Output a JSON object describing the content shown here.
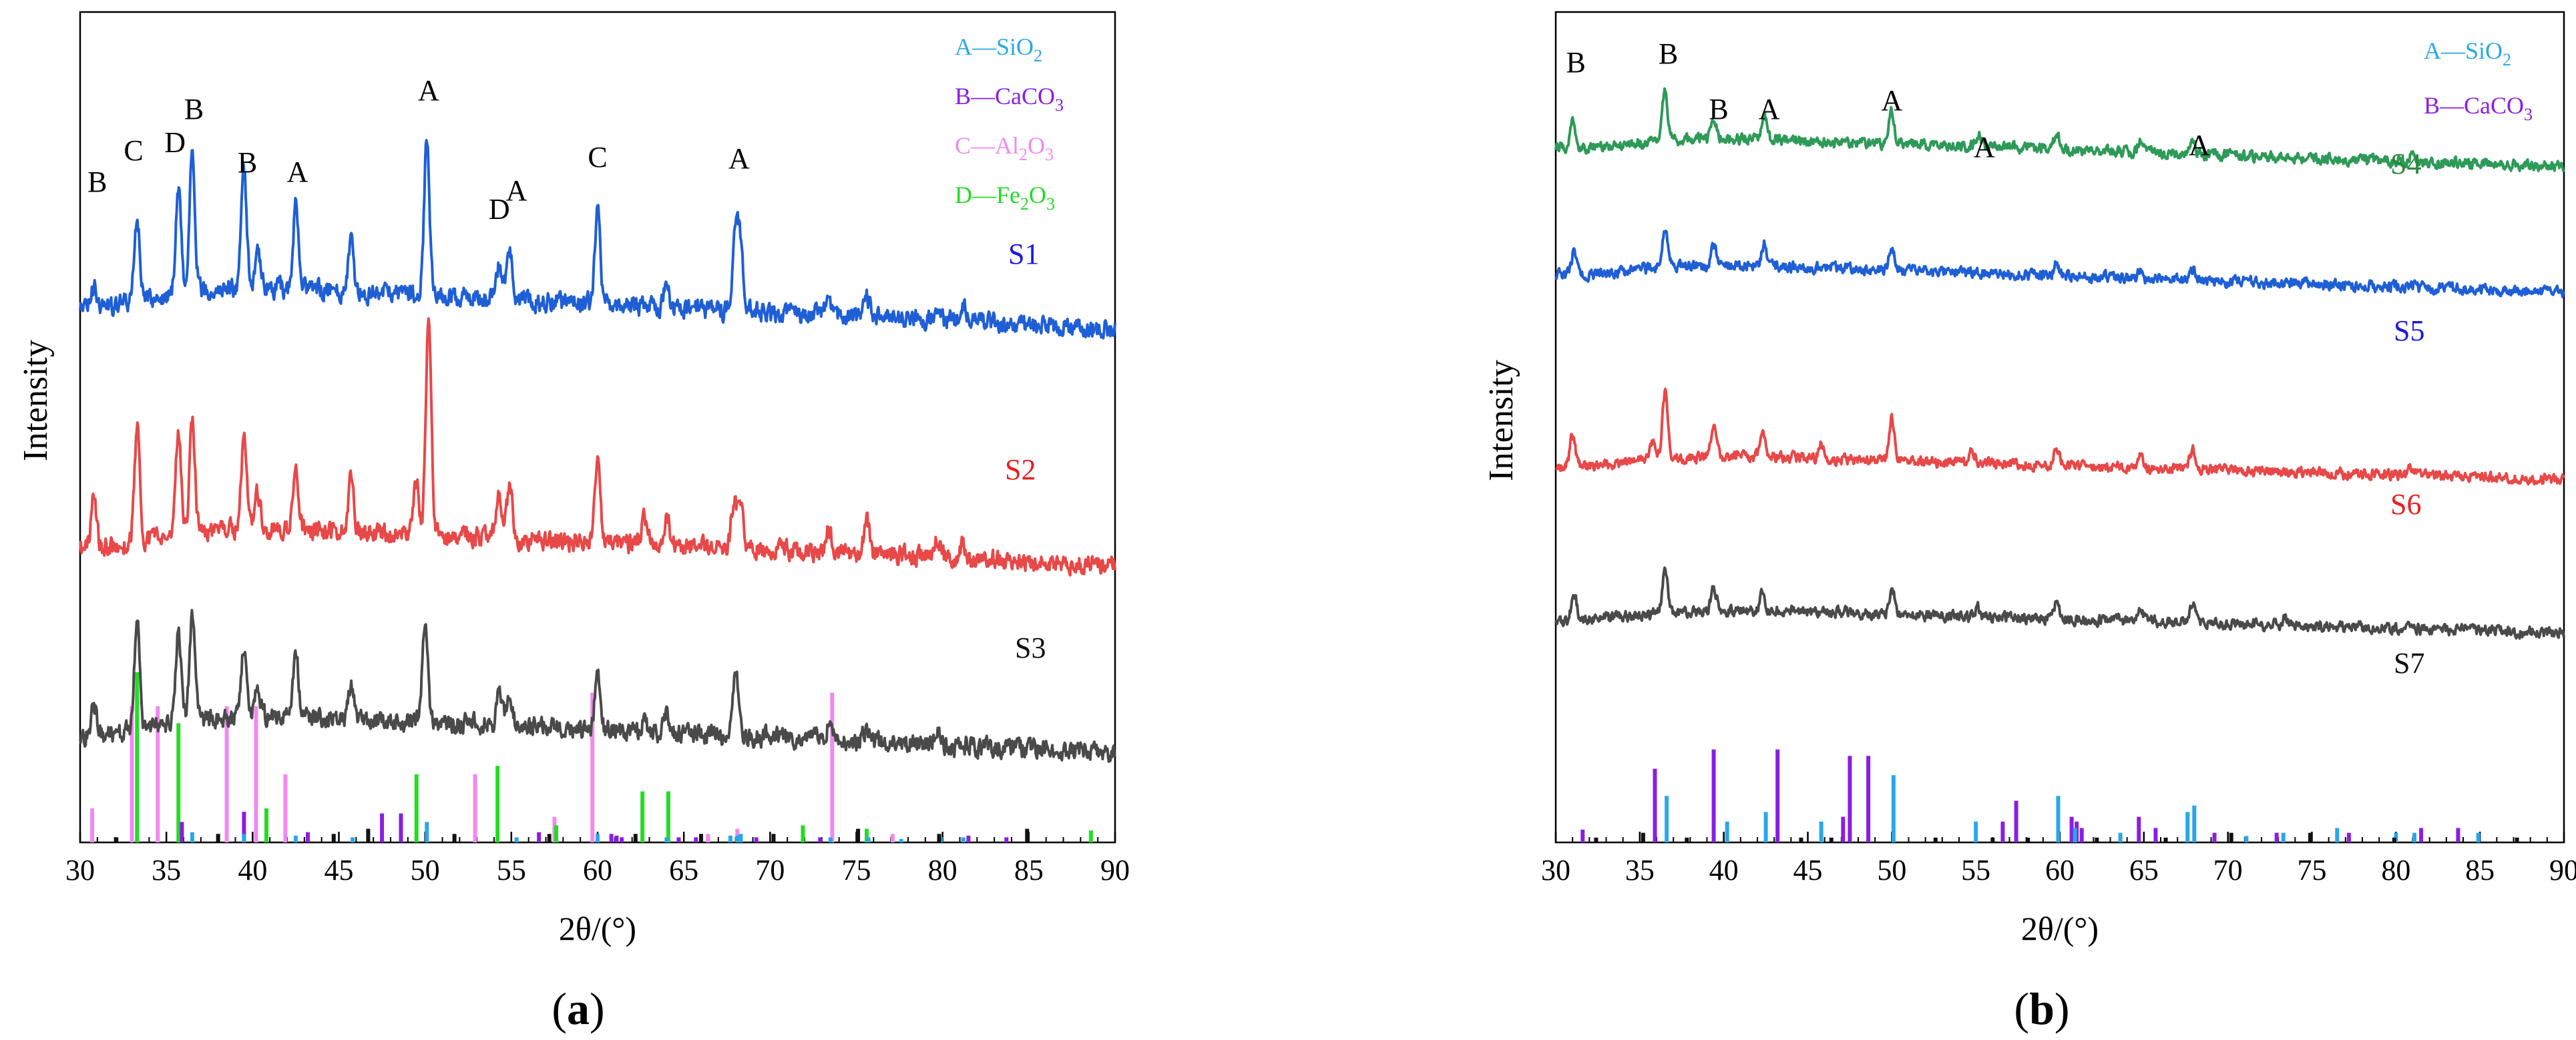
{
  "chart_data": [
    {
      "type": "line",
      "panel_label": "(a)",
      "panel_letter": "a",
      "xlabel": "2θ/(°)",
      "ylabel": "Intensity",
      "xlim": [
        30,
        90
      ],
      "xticks": [
        30,
        35,
        40,
        45,
        50,
        55,
        60,
        65,
        70,
        75,
        80,
        85,
        90
      ],
      "legend": [
        {
          "pre": "A—SiO",
          "sub": "2",
          "color": "#29a7e8"
        },
        {
          "pre": "B—CaCO",
          "sub": "3",
          "color": "#8a1ee0"
        },
        {
          "pre": "C—Al",
          "sub": "2",
          "mid": "O",
          "sub2": "3",
          "color": "#f08af0"
        },
        {
          "pre": "D—Fe",
          "sub": "2",
          "mid": "O",
          "sub2": "3",
          "color": "#22dd22"
        }
      ],
      "series": [
        {
          "name": "S1",
          "color": "#1f5fd6",
          "label_color": "#1a1ae0",
          "baseline_start": 0.92,
          "baseline_end": 1.37,
          "peaks": [
            [
              30.8,
              0.18
            ],
            [
              33.3,
              0.75
            ],
            [
              35.7,
              0.95
            ],
            [
              36.5,
              1.28
            ],
            [
              39.5,
              1.02
            ],
            [
              40.3,
              0.35
            ],
            [
              42.5,
              0.72
            ],
            [
              45.7,
              0.45
            ],
            [
              50.1,
              1.38
            ],
            [
              54.3,
              0.28
            ],
            [
              54.9,
              0.45
            ],
            [
              60.0,
              0.82
            ],
            [
              64.0,
              0.18
            ],
            [
              68.0,
              0.68
            ],
            [
              68.3,
              0.52
            ],
            [
              73.4,
              0.15
            ],
            [
              75.6,
              0.18
            ],
            [
              79.7,
              0.12
            ],
            [
              81.2,
              0.12
            ]
          ]
        },
        {
          "name": "S2",
          "color": "#e84848",
          "label_color": "#e82020",
          "baseline_start": 0.9,
          "baseline_end": 1.3,
          "peaks": [
            [
              30.8,
              0.45
            ],
            [
              33.3,
              1.0
            ],
            [
              35.7,
              0.9
            ],
            [
              36.5,
              1.0
            ],
            [
              39.5,
              0.82
            ],
            [
              40.3,
              0.3
            ],
            [
              42.5,
              0.6
            ],
            [
              45.7,
              0.48
            ],
            [
              49.5,
              0.45
            ],
            [
              50.2,
              1.9
            ],
            [
              54.3,
              0.38
            ],
            [
              54.9,
              0.45
            ],
            [
              60.0,
              0.68
            ],
            [
              62.7,
              0.2
            ],
            [
              64.0,
              0.25
            ],
            [
              67.9,
              0.4
            ],
            [
              68.3,
              0.45
            ],
            [
              73.4,
              0.22
            ],
            [
              75.6,
              0.32
            ],
            [
              79.7,
              0.15
            ],
            [
              81.2,
              0.13
            ]
          ]
        },
        {
          "name": "S3",
          "color": "#4a4a4a",
          "label_color": "#111111",
          "baseline_start": 1.05,
          "baseline_end": 1.45,
          "peaks": [
            [
              30.8,
              0.25
            ],
            [
              33.3,
              0.98
            ],
            [
              35.7,
              0.8
            ],
            [
              36.5,
              0.92
            ],
            [
              39.5,
              0.6
            ],
            [
              40.3,
              0.25
            ],
            [
              42.5,
              0.55
            ],
            [
              45.7,
              0.3
            ],
            [
              50.0,
              0.9
            ],
            [
              54.3,
              0.28
            ],
            [
              54.9,
              0.25
            ],
            [
              60.0,
              0.52
            ],
            [
              62.7,
              0.12
            ],
            [
              64.0,
              0.18
            ],
            [
              68.0,
              0.58
            ],
            [
              73.4,
              0.12
            ],
            [
              75.6,
              0.12
            ],
            [
              79.7,
              0.12
            ]
          ]
        }
      ],
      "annotations": [
        {
          "text": "B",
          "x": 31.0
        },
        {
          "text": "C",
          "x": 33.1
        },
        {
          "text": "D",
          "x": 35.5
        },
        {
          "text": "B",
          "x": 36.6
        },
        {
          "text": "B",
          "x": 39.7
        },
        {
          "text": "A",
          "x": 42.6
        },
        {
          "text": "A",
          "x": 50.2
        },
        {
          "text": "D",
          "x": 54.3
        },
        {
          "text": "A",
          "x": 55.3
        },
        {
          "text": "C",
          "x": 60.0
        },
        {
          "text": "A",
          "x": 68.2
        }
      ],
      "reference_lines": [
        {
          "phase": "C",
          "color": "#f08af0",
          "x": [
            30.7,
            33.0,
            34.5,
            38.5,
            40.2,
            41.9,
            52.9,
            57.5,
            59.7,
            66.4,
            68.1,
            73.6,
            77.1
          ],
          "h": [
            0.2,
            0.8,
            0.8,
            0.8,
            0.8,
            0.4,
            0.4,
            0.15,
            0.88,
            0.05,
            0.08,
            0.88,
            0.05
          ]
        },
        {
          "phase": "D",
          "color": "#22dd22",
          "x": [
            33.3,
            35.7,
            40.8,
            49.5,
            54.2,
            57.6,
            62.6,
            64.1,
            71.9,
            75.6,
            88.6
          ],
          "h": [
            1.0,
            0.7,
            0.2,
            0.4,
            0.45,
            0.1,
            0.3,
            0.3,
            0.1,
            0.08,
            0.07
          ]
        },
        {
          "phase": "B",
          "color": "#8a1ee0",
          "x": [
            35.9,
            39.5,
            43.2,
            47.5,
            48.6,
            56.6,
            60.8,
            61.1,
            61.4,
            64.7,
            65.7,
            69.2,
            72.9,
            81.5,
            83.7
          ],
          "h": [
            0.12,
            0.18,
            0.06,
            0.17,
            0.17,
            0.06,
            0.05,
            0.04,
            0.03,
            0.03,
            0.03,
            0.03,
            0.03,
            0.04,
            0.03
          ]
        },
        {
          "phase": "A",
          "color": "#29a7e8",
          "x": [
            36.5,
            39.5,
            42.5,
            45.8,
            50.1,
            55.3,
            60.0,
            64.0,
            67.7,
            68.1,
            68.3,
            73.5,
            75.7,
            77.6,
            79.9,
            81.2
          ],
          "h": [
            0.06,
            0.05,
            0.04,
            0.03,
            0.12,
            0.03,
            0.05,
            0.03,
            0.04,
            0.04,
            0.05,
            0.03,
            0.03,
            0.02,
            0.03,
            0.03
          ]
        },
        {
          "phase": "other",
          "color": "#111111",
          "x": [
            32.1,
            38.0,
            44.7,
            46.7,
            51.7,
            57.2,
            62.2,
            66.0,
            70.2,
            75.1,
            79.8,
            84.9
          ],
          "h": [
            0.03,
            0.05,
            0.05,
            0.08,
            0.05,
            0.05,
            0.05,
            0.05,
            0.05,
            0.08,
            0.05,
            0.08
          ]
        }
      ]
    },
    {
      "type": "line",
      "panel_label": "(b)",
      "panel_letter": "b",
      "xlabel": "2θ/(°)",
      "ylabel": "Intensity",
      "xlim": [
        30,
        90
      ],
      "xticks": [
        30,
        35,
        40,
        45,
        50,
        55,
        60,
        65,
        70,
        75,
        80,
        85,
        90
      ],
      "legend": [
        {
          "pre": "A—SiO",
          "sub": "2",
          "color": "#29a7e8"
        },
        {
          "pre": "B—CaCO",
          "sub": "3",
          "color": "#8a1ee0"
        }
      ],
      "series": [
        {
          "name": "S4",
          "color": "#2e9a58",
          "label_color": "#2a8a3a",
          "baseline_start": 0.85,
          "baseline_end": 1.4,
          "peaks": [
            [
              31.0,
              0.45
            ],
            [
              36.5,
              0.85
            ],
            [
              39.4,
              0.35
            ],
            [
              42.4,
              0.4
            ],
            [
              50.0,
              0.5
            ],
            [
              55.2,
              0.18
            ],
            [
              59.8,
              0.25
            ],
            [
              64.8,
              0.2
            ],
            [
              67.9,
              0.25
            ],
            [
              81.0,
              0.12
            ]
          ]
        },
        {
          "name": "S5",
          "color": "#1f5fd6",
          "label_color": "#1a1ae0",
          "baseline_start": 0.82,
          "baseline_end": 1.35,
          "peaks": [
            [
              31.1,
              0.38
            ],
            [
              36.5,
              0.6
            ],
            [
              39.4,
              0.3
            ],
            [
              42.4,
              0.35
            ],
            [
              50.0,
              0.38
            ],
            [
              59.8,
              0.18
            ],
            [
              64.8,
              0.12
            ],
            [
              67.9,
              0.18
            ]
          ]
        },
        {
          "name": "S6",
          "color": "#e84848",
          "label_color": "#e82020",
          "baseline_start": 0.85,
          "baseline_end": 1.3,
          "peaks": [
            [
              31.0,
              0.5
            ],
            [
              35.8,
              0.3
            ],
            [
              36.5,
              1.05
            ],
            [
              39.4,
              0.52
            ],
            [
              42.3,
              0.4
            ],
            [
              45.8,
              0.25
            ],
            [
              50.0,
              0.68
            ],
            [
              54.8,
              0.2
            ],
            [
              59.8,
              0.25
            ],
            [
              64.8,
              0.2
            ],
            [
              67.9,
              0.3
            ],
            [
              80.9,
              0.1
            ]
          ]
        },
        {
          "name": "S7",
          "color": "#4a4a4a",
          "label_color": "#111111",
          "baseline_start": 0.85,
          "baseline_end": 1.3,
          "peaks": [
            [
              31.1,
              0.4
            ],
            [
              36.5,
              0.72
            ],
            [
              39.4,
              0.35
            ],
            [
              42.3,
              0.25
            ],
            [
              50.0,
              0.42
            ],
            [
              55.1,
              0.15
            ],
            [
              59.8,
              0.25
            ],
            [
              64.8,
              0.22
            ],
            [
              67.9,
              0.3
            ],
            [
              73.4,
              0.12
            ],
            [
              81.0,
              0.08
            ]
          ]
        }
      ],
      "annotations": [
        {
          "text": "B",
          "x": 31.2
        },
        {
          "text": "B",
          "x": 36.7
        },
        {
          "text": "B",
          "x": 39.7
        },
        {
          "text": "A",
          "x": 42.7
        },
        {
          "text": "A",
          "x": 50.0
        },
        {
          "text": "A",
          "x": 55.5
        },
        {
          "text": "A",
          "x": 68.3
        }
      ],
      "reference_lines": [
        {
          "phase": "B",
          "color": "#8a1ee0",
          "x": [
            31.6,
            35.9,
            39.4,
            43.2,
            47.1,
            47.5,
            48.6,
            56.6,
            57.4,
            60.7,
            61.0,
            61.3,
            64.7,
            65.7,
            69.2,
            72.9,
            77.2,
            81.5,
            83.7
          ],
          "h": [
            0.08,
            0.46,
            0.58,
            0.58,
            0.16,
            0.54,
            0.54,
            0.13,
            0.26,
            0.16,
            0.13,
            0.09,
            0.16,
            0.09,
            0.06,
            0.06,
            0.06,
            0.09,
            0.09
          ]
        },
        {
          "phase": "A",
          "color": "#29a7e8",
          "x": [
            36.6,
            40.2,
            42.5,
            45.8,
            50.1,
            55.0,
            59.9,
            60.9,
            63.6,
            67.6,
            68.0,
            71.1,
            73.3,
            76.5,
            80.0,
            81.1,
            84.9
          ],
          "h": [
            0.29,
            0.13,
            0.19,
            0.13,
            0.42,
            0.13,
            0.29,
            0.09,
            0.06,
            0.19,
            0.23,
            0.04,
            0.06,
            0.09,
            0.06,
            0.06,
            0.06
          ]
        },
        {
          "phase": "other",
          "color": "#111111",
          "x": [
            32.4,
            35.2,
            37.8,
            44.6,
            46.4,
            52.6,
            56.0,
            58.1,
            62.2,
            66.3,
            70.2,
            74.9,
            79.9,
            87.2
          ],
          "h": [
            0.03,
            0.06,
            0.03,
            0.03,
            0.03,
            0.03,
            0.03,
            0.03,
            0.03,
            0.03,
            0.06,
            0.06,
            0.03,
            0.03
          ]
        }
      ]
    }
  ]
}
